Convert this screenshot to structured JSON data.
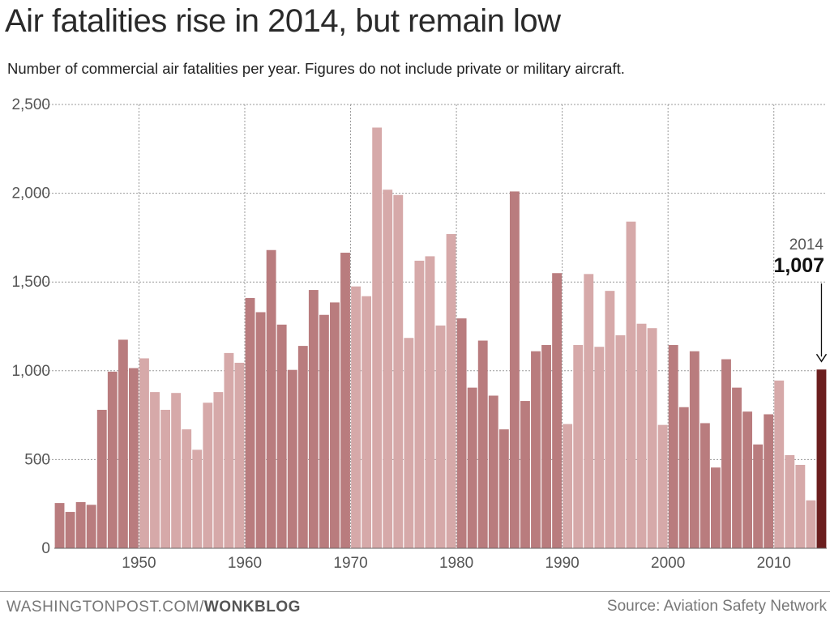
{
  "header": {
    "title": "Air fatalities rise in 2014, but remain low",
    "subtitle": "Number of commercial air fatalities per year. Figures do not include private or military aircraft."
  },
  "footer": {
    "site": "WASHINGTONPOST.COM/",
    "section": "WONKBLOG",
    "source": "Source: Aviation Safety Network"
  },
  "colors": {
    "dark_decade": "#b97c7e",
    "light_decade": "#d6a9a9",
    "highlight": "#6b1e1e",
    "grid": "#9a9a9a"
  },
  "chart_data": {
    "type": "bar",
    "title": "Air fatalities rise in 2014, but remain low",
    "subtitle": "Number of commercial air fatalities per year. Figures do not include private or military aircraft.",
    "xlabel": "",
    "ylabel": "",
    "ylim": [
      0,
      2500
    ],
    "yticks": [
      0,
      500,
      1000,
      1500,
      2000,
      2500
    ],
    "ytick_labels": [
      "0",
      "500",
      "1,000",
      "1,500",
      "2,000",
      "2,500"
    ],
    "xticks": [
      1950,
      1960,
      1970,
      1980,
      1990,
      2000,
      2010
    ],
    "xtick_labels": [
      "1950",
      "1960",
      "1970",
      "1980",
      "1990",
      "2000",
      "2010"
    ],
    "grid": true,
    "categories": [
      1942,
      1943,
      1944,
      1945,
      1946,
      1947,
      1948,
      1949,
      1950,
      1951,
      1952,
      1953,
      1954,
      1955,
      1956,
      1957,
      1958,
      1959,
      1960,
      1961,
      1962,
      1963,
      1964,
      1965,
      1966,
      1967,
      1968,
      1969,
      1970,
      1971,
      1972,
      1973,
      1974,
      1975,
      1976,
      1977,
      1978,
      1979,
      1980,
      1981,
      1982,
      1983,
      1984,
      1985,
      1986,
      1987,
      1988,
      1989,
      1990,
      1991,
      1992,
      1993,
      1994,
      1995,
      1996,
      1997,
      1998,
      1999,
      2000,
      2001,
      2002,
      2003,
      2004,
      2005,
      2006,
      2007,
      2008,
      2009,
      2010,
      2011,
      2012,
      2013,
      2014
    ],
    "values": [
      255,
      205,
      260,
      245,
      780,
      995,
      1175,
      1015,
      1070,
      880,
      780,
      875,
      670,
      555,
      820,
      880,
      1100,
      1045,
      1410,
      1330,
      1680,
      1260,
      1005,
      1140,
      1455,
      1315,
      1385,
      1665,
      1475,
      1420,
      2370,
      2020,
      1990,
      1185,
      1620,
      1645,
      1255,
      1770,
      1295,
      905,
      1170,
      860,
      670,
      2010,
      830,
      1110,
      1145,
      1550,
      700,
      1145,
      1545,
      1135,
      1450,
      1200,
      1840,
      1265,
      1240,
      695,
      1145,
      795,
      1110,
      705,
      455,
      1065,
      905,
      770,
      585,
      755,
      945,
      525,
      470,
      270,
      1007
    ],
    "annotation": {
      "year_label": "2014",
      "value_label": "1,007",
      "year": 2014,
      "value": 1007
    }
  }
}
